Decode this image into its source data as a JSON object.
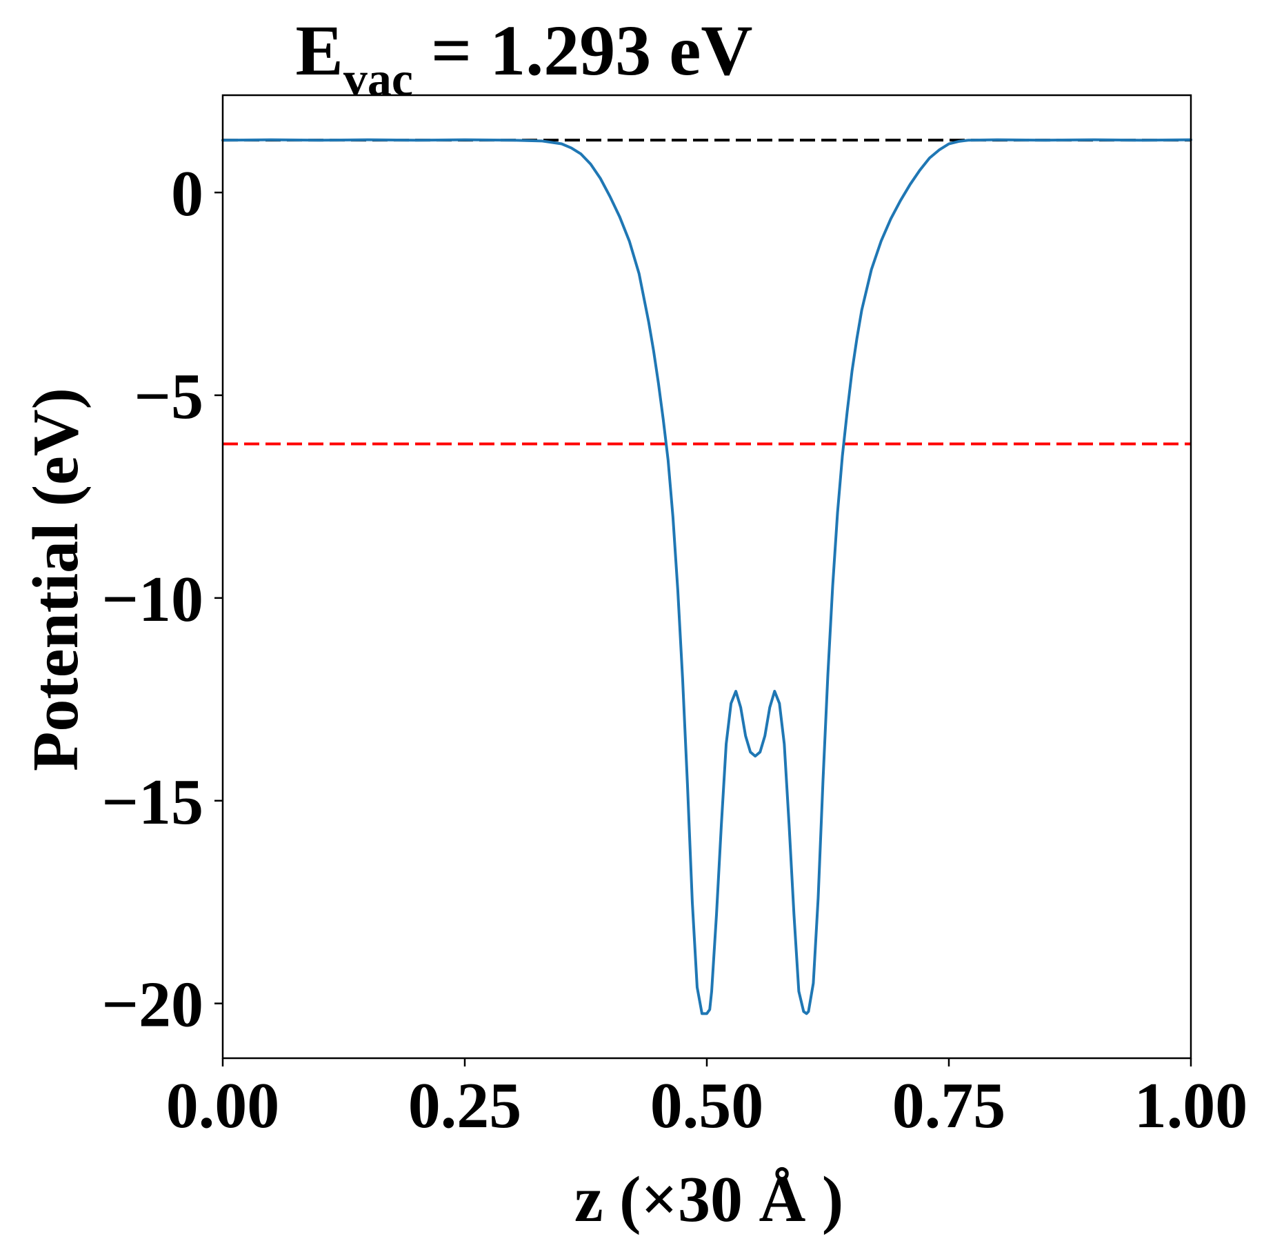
{
  "chart_data": {
    "type": "line",
    "title": {
      "main": "E",
      "subscript": "vac",
      "rest": " = 1.293 eV"
    },
    "xlabel": "z (×30 Å )",
    "ylabel": "Potential (eV)",
    "xlim": [
      0.0,
      1.0
    ],
    "ylim": [
      -21.35,
      2.4
    ],
    "xticks": [
      {
        "value": 0.0,
        "label": "0.00"
      },
      {
        "value": 0.25,
        "label": "0.25"
      },
      {
        "value": 0.5,
        "label": "0.50"
      },
      {
        "value": 0.75,
        "label": "0.75"
      },
      {
        "value": 1.0,
        "label": "1.00"
      }
    ],
    "yticks": [
      {
        "value": 0,
        "label": "0"
      },
      {
        "value": -5,
        "label": "−5"
      },
      {
        "value": -10,
        "label": "−10"
      },
      {
        "value": -15,
        "label": "−15"
      },
      {
        "value": -20,
        "label": "−20"
      }
    ],
    "grid": false,
    "legend": "none",
    "reference_lines": [
      {
        "y": 1.293,
        "color": "#000000",
        "style": "dashed"
      },
      {
        "y": -6.2,
        "color": "#ff0000",
        "style": "dashed"
      }
    ],
    "series": [
      {
        "color": "#1f77b4",
        "x": [
          0.0,
          0.05,
          0.1,
          0.15,
          0.2,
          0.25,
          0.3,
          0.33,
          0.35,
          0.36,
          0.37,
          0.38,
          0.39,
          0.4,
          0.41,
          0.42,
          0.43,
          0.44,
          0.445,
          0.45,
          0.455,
          0.46,
          0.465,
          0.47,
          0.475,
          0.48,
          0.485,
          0.49,
          0.495,
          0.5,
          0.503,
          0.505,
          0.51,
          0.515,
          0.52,
          0.525,
          0.53,
          0.535,
          0.54,
          0.545,
          0.55,
          0.555,
          0.56,
          0.565,
          0.57,
          0.575,
          0.58,
          0.585,
          0.59,
          0.595,
          0.6,
          0.603,
          0.605,
          0.61,
          0.615,
          0.62,
          0.625,
          0.63,
          0.635,
          0.64,
          0.645,
          0.65,
          0.655,
          0.66,
          0.67,
          0.68,
          0.69,
          0.7,
          0.71,
          0.72,
          0.73,
          0.74,
          0.75,
          0.76,
          0.77,
          0.8,
          0.85,
          0.9,
          0.95,
          1.0
        ],
        "y": [
          1.29,
          1.3,
          1.29,
          1.3,
          1.29,
          1.3,
          1.29,
          1.27,
          1.2,
          1.1,
          0.95,
          0.7,
          0.35,
          -0.1,
          -0.6,
          -1.2,
          -2.0,
          -3.2,
          -3.9,
          -4.7,
          -5.6,
          -6.6,
          -8.0,
          -9.8,
          -12.0,
          -14.6,
          -17.5,
          -19.6,
          -20.25,
          -20.25,
          -20.15,
          -19.7,
          -17.8,
          -15.6,
          -13.6,
          -12.6,
          -12.3,
          -12.7,
          -13.4,
          -13.8,
          -13.9,
          -13.8,
          -13.4,
          -12.7,
          -12.3,
          -12.6,
          -13.6,
          -15.6,
          -17.8,
          -19.7,
          -20.2,
          -20.25,
          -20.2,
          -19.5,
          -17.4,
          -14.5,
          -11.9,
          -9.7,
          -7.9,
          -6.5,
          -5.4,
          -4.4,
          -3.6,
          -2.9,
          -1.9,
          -1.2,
          -0.65,
          -0.2,
          0.2,
          0.55,
          0.85,
          1.05,
          1.2,
          1.26,
          1.29,
          1.3,
          1.29,
          1.3,
          1.29,
          1.3
        ]
      }
    ]
  }
}
